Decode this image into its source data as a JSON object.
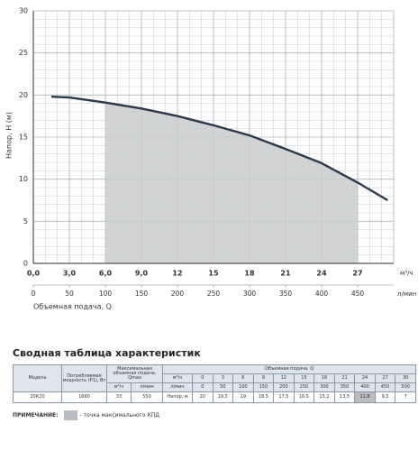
{
  "chart_data": {
    "type": "line",
    "y_label": "Напор, Н (м)",
    "x_unit": "м³/ч",
    "x2_unit": "л/мин",
    "x_label": "Объемная подача, Q",
    "x": [
      1.5,
      3,
      6,
      9,
      12,
      15,
      18,
      21,
      24,
      27,
      29.5
    ],
    "values": [
      19.8,
      19.7,
      19.1,
      18.4,
      17.5,
      16.4,
      15.2,
      13.6,
      11.9,
      9.6,
      7.5
    ],
    "color": "#2b3a4a",
    "shade_range": [
      6,
      27
    ],
    "shade_color": "#c9cbcd",
    "xlim": [
      0,
      30
    ],
    "xticks": [
      {
        "value": 0,
        "label": "0,0"
      },
      {
        "value": 3,
        "label": "3,0"
      },
      {
        "value": 6,
        "label": "6,0"
      },
      {
        "value": 9,
        "label": "9,0"
      },
      12,
      15,
      18,
      21,
      24,
      27
    ],
    "x2lim": [
      0,
      500
    ],
    "x2ticks": [
      0,
      50,
      100,
      150,
      200,
      250,
      300,
      350,
      400,
      450
    ],
    "ylim": [
      0,
      30
    ],
    "yticks": [
      0,
      5,
      10,
      15,
      20,
      25,
      30
    ],
    "grid": true
  },
  "table": {
    "title": "Сводная таблица характеристик",
    "headers": {
      "model": "Модель",
      "power": "Потребляемая мощность (Р1), Вт",
      "qmax": "Максимальная объемная подача, Qmax",
      "qmax_units": [
        "м³/ч",
        "л/мин"
      ],
      "flow": "Объемная подача, Q",
      "flow_units": [
        "м³/ч",
        "л/мин"
      ],
      "flow_m3h": [
        "0",
        "3",
        "6",
        "9",
        "12",
        "15",
        "18",
        "21",
        "24",
        "27",
        "30"
      ],
      "flow_lmin": [
        "0",
        "50",
        "100",
        "150",
        "200",
        "250",
        "300",
        "350",
        "400",
        "450",
        "500"
      ]
    },
    "rows": [
      [
        "20К20",
        "1660",
        "33",
        "550",
        "Напор, м",
        "20",
        "19,5",
        "19",
        "18,5",
        "17,5",
        "16,5",
        "15,2",
        "13,5",
        "11,8",
        "9,5",
        "7"
      ]
    ]
  },
  "note": {
    "label": "ПРИМЕЧАНИЕ:",
    "text": "- точка максимального КПД"
  }
}
